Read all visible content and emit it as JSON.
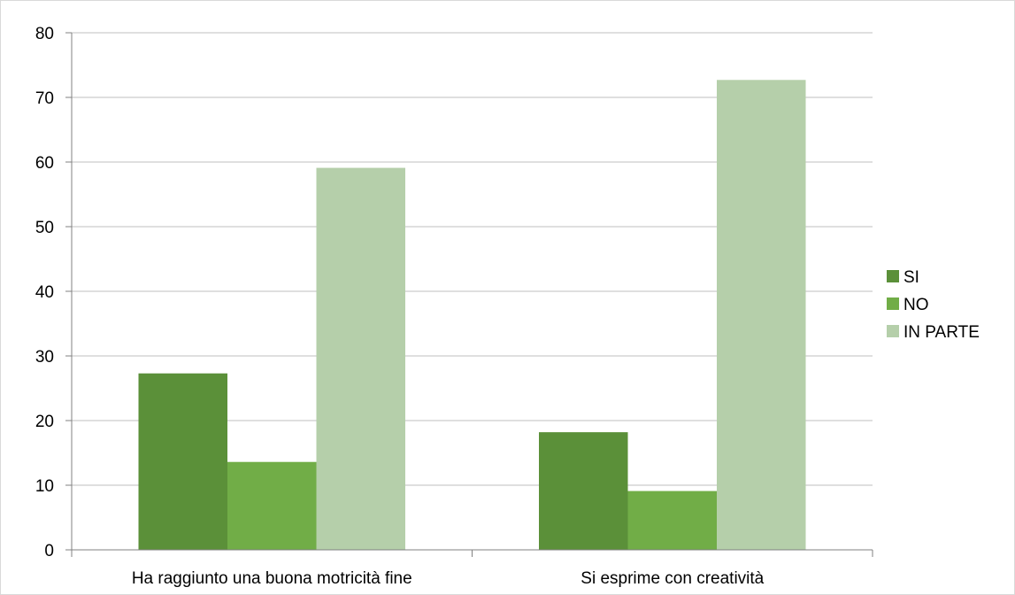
{
  "chart_data": {
    "type": "bar",
    "title": "",
    "xlabel": "",
    "ylabel": "",
    "categories": [
      "Ha raggiunto una buona motricità fine",
      "Si esprime con creatività"
    ],
    "series": [
      {
        "name": "SI",
        "color": "#5b9039",
        "values": [
          27.3,
          18.2
        ]
      },
      {
        "name": "NO",
        "color": "#71ad47",
        "values": [
          13.6,
          9.1
        ]
      },
      {
        "name": "IN PARTE",
        "color": "#b5cfaa",
        "values": [
          59.1,
          72.7
        ]
      }
    ],
    "ylim": [
      0,
      80
    ],
    "yticks": [
      0,
      10,
      20,
      30,
      40,
      50,
      60,
      70,
      80
    ],
    "grid": true,
    "legend": "right",
    "colors": {
      "grid": "#bfbfbf",
      "axis": "#808080",
      "border": "#d9d9d9"
    }
  }
}
